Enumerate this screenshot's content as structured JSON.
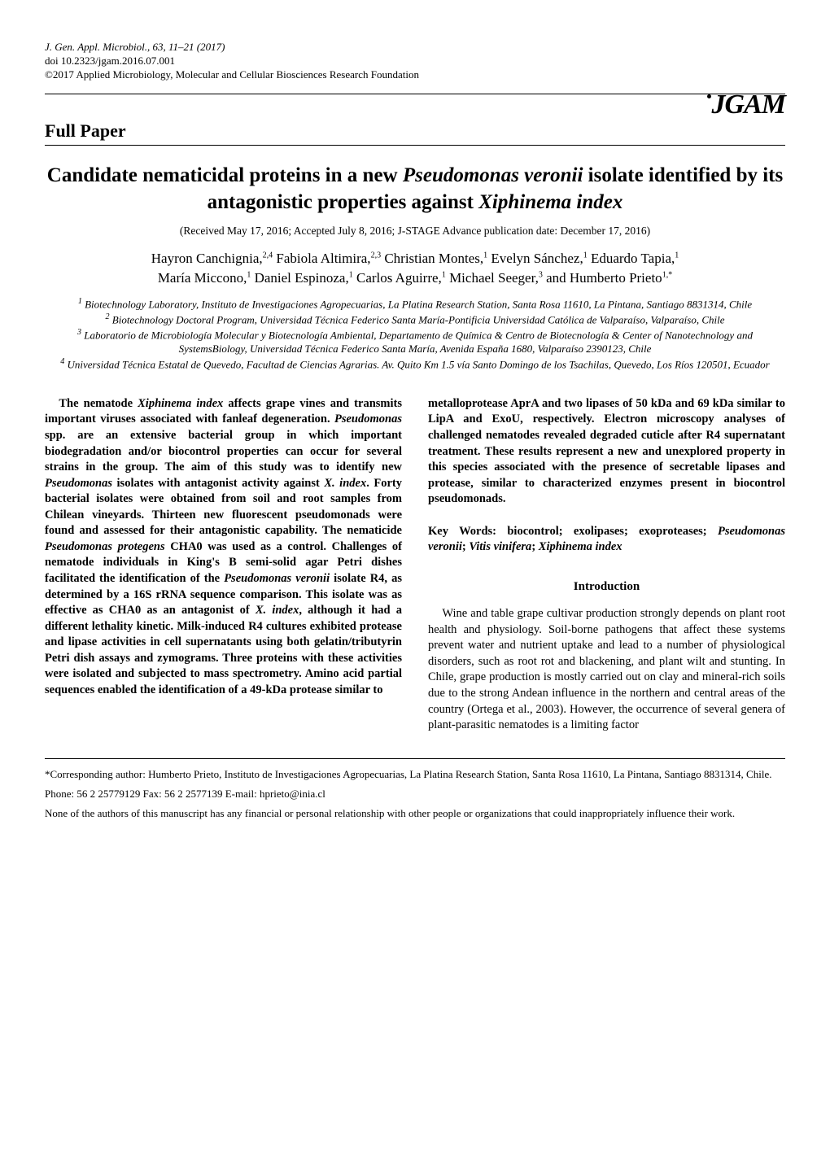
{
  "header": {
    "journal_line": "J. Gen. Appl. Microbiol., 63, 11–21 (2017)",
    "doi_line": "doi 10.2323/jgam.2016.07.001",
    "copyright_line": "©2017 Applied Microbiology, Molecular and Cellular Biosciences Research Foundation",
    "logo_text": "JGAM",
    "section_label": "Full Paper"
  },
  "article": {
    "title_prefix": "Candidate nematicidal proteins in a new ",
    "title_species1": "Pseudomonas veronii",
    "title_mid": " isolate identified by its antagonistic properties against ",
    "title_species2": "Xiphinema index",
    "received": "(Received May 17, 2016; Accepted July 8, 2016; J-STAGE Advance publication date: December 17, 2016)",
    "authors_line1": "Hayron Canchignia,",
    "authors_sup1": "2,4",
    "authors_a2": " Fabiola Altimira,",
    "authors_sup2": "2,3",
    "authors_a3": " Christian Montes,",
    "authors_sup3": "1",
    "authors_a4": " Evelyn Sánchez,",
    "authors_sup4": "1",
    "authors_a5": " Eduardo Tapia,",
    "authors_sup5": "1",
    "authors_a6": "María Miccono,",
    "authors_sup6": "1",
    "authors_a7": " Daniel Espinoza,",
    "authors_sup7": "1",
    "authors_a8": " Carlos Aguirre,",
    "authors_sup8": "1",
    "authors_a9": " Michael Seeger,",
    "authors_sup9": "3",
    "authors_a10": " and Humberto Prieto",
    "authors_sup10": "1,*",
    "aff1_sup": "1",
    "aff1": " Biotechnology Laboratory, Instituto de Investigaciones Agropecuarias, La Platina Research Station, Santa Rosa 11610, La Pintana, Santiago 8831314, Chile",
    "aff2_sup": "2",
    "aff2": " Biotechnology Doctoral Program, Universidad Técnica Federico Santa María-Pontificia Universidad Católica de Valparaíso, Valparaíso, Chile",
    "aff3_sup": "3",
    "aff3": " Laboratorio de Microbiología Molecular y Biotecnología Ambiental, Departamento de Química & Centro de Biotecnología & Center of Nanotechnology and SystemsBiology, Universidad Técnica Federico Santa María, Avenida España 1680, Valparaíso 2390123, Chile",
    "aff4_sup": "4",
    "aff4": " Universidad Técnica Estatal de Quevedo, Facultad de Ciencias Agrarias. Av. Quito Km 1.5 vía Santo Domingo de los Tsachilas, Quevedo, Los Ríos 120501, Ecuador",
    "abstract_left_part1": "The nematode ",
    "abstract_left_sp1": "Xiphinema index",
    "abstract_left_part2": " affects grape vines and transmits important viruses associated with fanleaf degeneration. ",
    "abstract_left_sp2": "Pseudomonas",
    "abstract_left_part3": " spp. are an extensive bacterial group in which important biodegradation and/or biocontrol properties can occur for several strains in the group. The aim of this study was to identify new ",
    "abstract_left_sp3": "Pseudomonas",
    "abstract_left_part4": " isolates with antagonist activity against ",
    "abstract_left_sp4": "X. index",
    "abstract_left_part5": ". Forty bacterial isolates were obtained from soil and root samples from Chilean vineyards. Thirteen new fluorescent pseudomonads were found and assessed for their antagonistic capability. The nematicide ",
    "abstract_left_sp5": "Pseudomonas protegens",
    "abstract_left_part6": " CHA0 was used as a control. Challenges of nematode individuals in King's B semi-solid agar Petri dishes facilitated the identification of the ",
    "abstract_left_sp6": "Pseudomonas veronii",
    "abstract_left_part7": " isolate R4, as determined by a 16S rRNA sequence comparison. This isolate was as effective as CHA0 as an antagonist of ",
    "abstract_left_sp7": "X. index",
    "abstract_left_part8": ", although it had a different lethality kinetic. Milk-induced R4 cultures exhibited protease and lipase activities in cell supernatants using both gelatin/tributyrin Petri dish assays and zymograms. Three proteins with these activities were isolated and subjected to mass spectrometry. Amino acid partial sequences enabled the identification of a 49-kDa protease similar to",
    "abstract_right_part1": "metalloprotease AprA and two lipases of 50 kDa and 69 kDa similar to LipA and ExoU, respectively. Electron microscopy analyses of challenged nematodes revealed degraded cuticle after R4 supernatant treatment. These results represent a new and unexplored property in this species associated with the presence of secretable lipases and protease, similar to characterized enzymes present in biocontrol pseudomonads.",
    "keywords_prefix": "Key Words: biocontrol; exolipases; exoproteases; ",
    "keywords_sp1": "Pseudomonas veronii",
    "keywords_sep1": "; ",
    "keywords_sp2": "Vitis vinifera",
    "keywords_sep2": "; ",
    "keywords_sp3": "Xiphinema index",
    "intro_heading": "Introduction",
    "intro_body": "Wine and table grape cultivar production strongly depends on plant root health and physiology. Soil-borne pathogens that affect these systems prevent water and nutrient uptake and lead to a number of physiological disorders, such as root rot and blackening, and plant wilt and stunting. In Chile, grape production is mostly carried out on clay and mineral-rich soils due to the strong Andean influence in the northern and central areas of the country (Ortega et al., 2003). However, the occurrence of several genera of plant-parasitic nematodes is a limiting factor"
  },
  "footer": {
    "corresponding": "*Corresponding author: Humberto Prieto, Instituto de Investigaciones Agropecuarias, La Platina Research Station, Santa Rosa 11610, La Pintana, Santiago 8831314, Chile.",
    "contact": "Phone: 56 2 25779129     Fax: 56 2 2577139     E-mail: hprieto@inia.cl",
    "conflict": "None of the authors of this manuscript has any financial or personal relationship with other people or organizations that could inappropriately influence their work."
  }
}
